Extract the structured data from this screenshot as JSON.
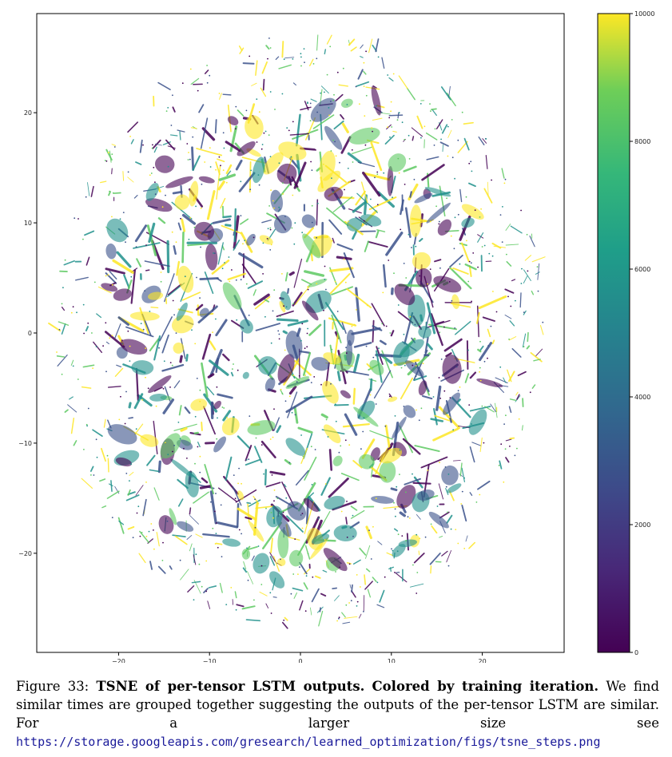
{
  "chart_data": {
    "type": "scatter",
    "title": "",
    "xlabel": "",
    "ylabel": "",
    "xlim": [
      -29,
      29
    ],
    "ylim": [
      -29,
      29
    ],
    "x_ticks": [
      -20,
      -10,
      0,
      10,
      20
    ],
    "y_ticks": [
      -20,
      -10,
      0,
      10,
      20
    ],
    "grid": false,
    "colormap": "viridis",
    "colorbar": {
      "min": 0,
      "max": 10000,
      "ticks": [
        0,
        2000,
        4000,
        6000,
        8000,
        10000
      ]
    },
    "point_cloud": {
      "shape": "roughly circular",
      "center": [
        0,
        0
      ],
      "radius": 27
    },
    "colors": [
      "#440154",
      "#3b528b",
      "#21918c",
      "#5ec962",
      "#fde725"
    ]
  },
  "caption": {
    "label": "Figure 33:",
    "bold_title": "TSNE of per-tensor LSTM outputs.",
    "bold_subtitle": "Colored by training iteration.",
    "text": "We find similar times are grouped together suggesting the outputs of the per-tensor LSTM are similar. For a larger size see",
    "url": "https://storage.googleapis.com/gresearch/learned_optimization/figs/tsne_steps.png"
  }
}
